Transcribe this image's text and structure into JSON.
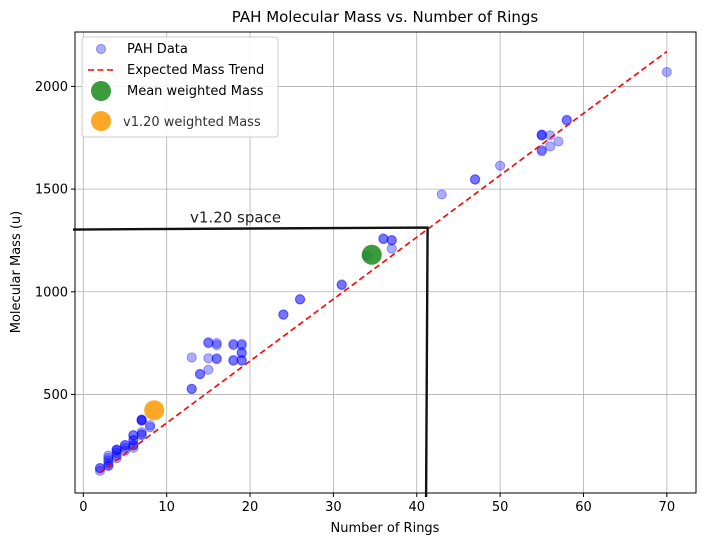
{
  "chart_data": {
    "type": "scatter",
    "title": "PAH Molecular Mass vs. Number of Rings",
    "xlabel": "Number of Rings",
    "ylabel": "Molecular Mass (u)",
    "xlim": [
      -1,
      73.5
    ],
    "ylim": [
      20,
      2265
    ],
    "xticks": [
      0,
      10,
      20,
      30,
      40,
      50,
      60,
      70
    ],
    "yticks": [
      500,
      1000,
      1500,
      2000
    ],
    "grid": true,
    "legend_position": "top-left",
    "colors": {
      "pah": "#0000ff",
      "trend": "#ff0000",
      "mean": "#1a8a1a",
      "v120": "#ff9900",
      "box": "#111111"
    },
    "series": [
      {
        "name": "PAH Data",
        "kind": "scatter",
        "opacity_note": "semi-transparent blue points (overlapping appear darker)",
        "points": [
          [
            2,
            128
          ],
          [
            2,
            140
          ],
          [
            2,
            142
          ],
          [
            3,
            152
          ],
          [
            3,
            154
          ],
          [
            3,
            165
          ],
          [
            3,
            178
          ],
          [
            3,
            190
          ],
          [
            3,
            202
          ],
          [
            4,
            190
          ],
          [
            4,
            202
          ],
          [
            4,
            216
          ],
          [
            4,
            228
          ],
          [
            4,
            230
          ],
          [
            4,
            232
          ],
          [
            5,
            226
          ],
          [
            5,
            240
          ],
          [
            5,
            252
          ],
          [
            5,
            254
          ],
          [
            6,
            240
          ],
          [
            6,
            252
          ],
          [
            6,
            254
          ],
          [
            6,
            276
          ],
          [
            6,
            278
          ],
          [
            6,
            300
          ],
          [
            6,
            302
          ],
          [
            7,
            302
          ],
          [
            7,
            306
          ],
          [
            7,
            316
          ],
          [
            7,
            372
          ],
          [
            7,
            374
          ],
          [
            7,
            376
          ],
          [
            7,
            378
          ],
          [
            8,
            340
          ],
          [
            8,
            350
          ],
          [
            13,
            526
          ],
          [
            13,
            528
          ],
          [
            13,
            680
          ],
          [
            14,
            598
          ],
          [
            14,
            600
          ],
          [
            15,
            620
          ],
          [
            15,
            676
          ],
          [
            15,
            750
          ],
          [
            15,
            754
          ],
          [
            16,
            672
          ],
          [
            16,
            676
          ],
          [
            16,
            740
          ],
          [
            16,
            750
          ],
          [
            18,
            664
          ],
          [
            18,
            668
          ],
          [
            18,
            740
          ],
          [
            18,
            746
          ],
          [
            19,
            664
          ],
          [
            19,
            668
          ],
          [
            19,
            700
          ],
          [
            19,
            706
          ],
          [
            19,
            740
          ],
          [
            19,
            746
          ],
          [
            24,
            888
          ],
          [
            24,
            890
          ],
          [
            26,
            962
          ],
          [
            26,
            964
          ],
          [
            31,
            1032
          ],
          [
            31,
            1036
          ],
          [
            34,
            1176
          ],
          [
            36,
            1256
          ],
          [
            36,
            1260
          ],
          [
            37,
            1210
          ],
          [
            37,
            1250
          ],
          [
            37,
            1252
          ],
          [
            43,
            1474
          ],
          [
            47,
            1546
          ],
          [
            47,
            1548
          ],
          [
            50,
            1614
          ],
          [
            55,
            1684
          ],
          [
            55,
            1690
          ],
          [
            55,
            1760
          ],
          [
            55,
            1764
          ],
          [
            55,
            1766
          ],
          [
            56,
            1708
          ],
          [
            56,
            1762
          ],
          [
            57,
            1732
          ],
          [
            58,
            1834
          ],
          [
            58,
            1838
          ],
          [
            70,
            2070
          ]
        ]
      },
      {
        "name": "Expected Mass Trend",
        "kind": "line",
        "style": "dashed",
        "x": [
          2,
          70
        ],
        "y": [
          120,
          2170
        ]
      },
      {
        "name": "Mean weighted Mass",
        "kind": "marker",
        "x": [
          34.6
        ],
        "y": [
          1180
        ]
      },
      {
        "name": "v1.20 weighted Mass",
        "kind": "marker",
        "x": [
          8.5
        ],
        "y": [
          423
        ]
      }
    ],
    "annotations": [
      {
        "text": "v1.20 space",
        "x": 12.8,
        "y": 1338
      }
    ],
    "region": {
      "description": "hand-drawn box boundary",
      "x_max": 41.3,
      "y_max": 1308
    }
  }
}
